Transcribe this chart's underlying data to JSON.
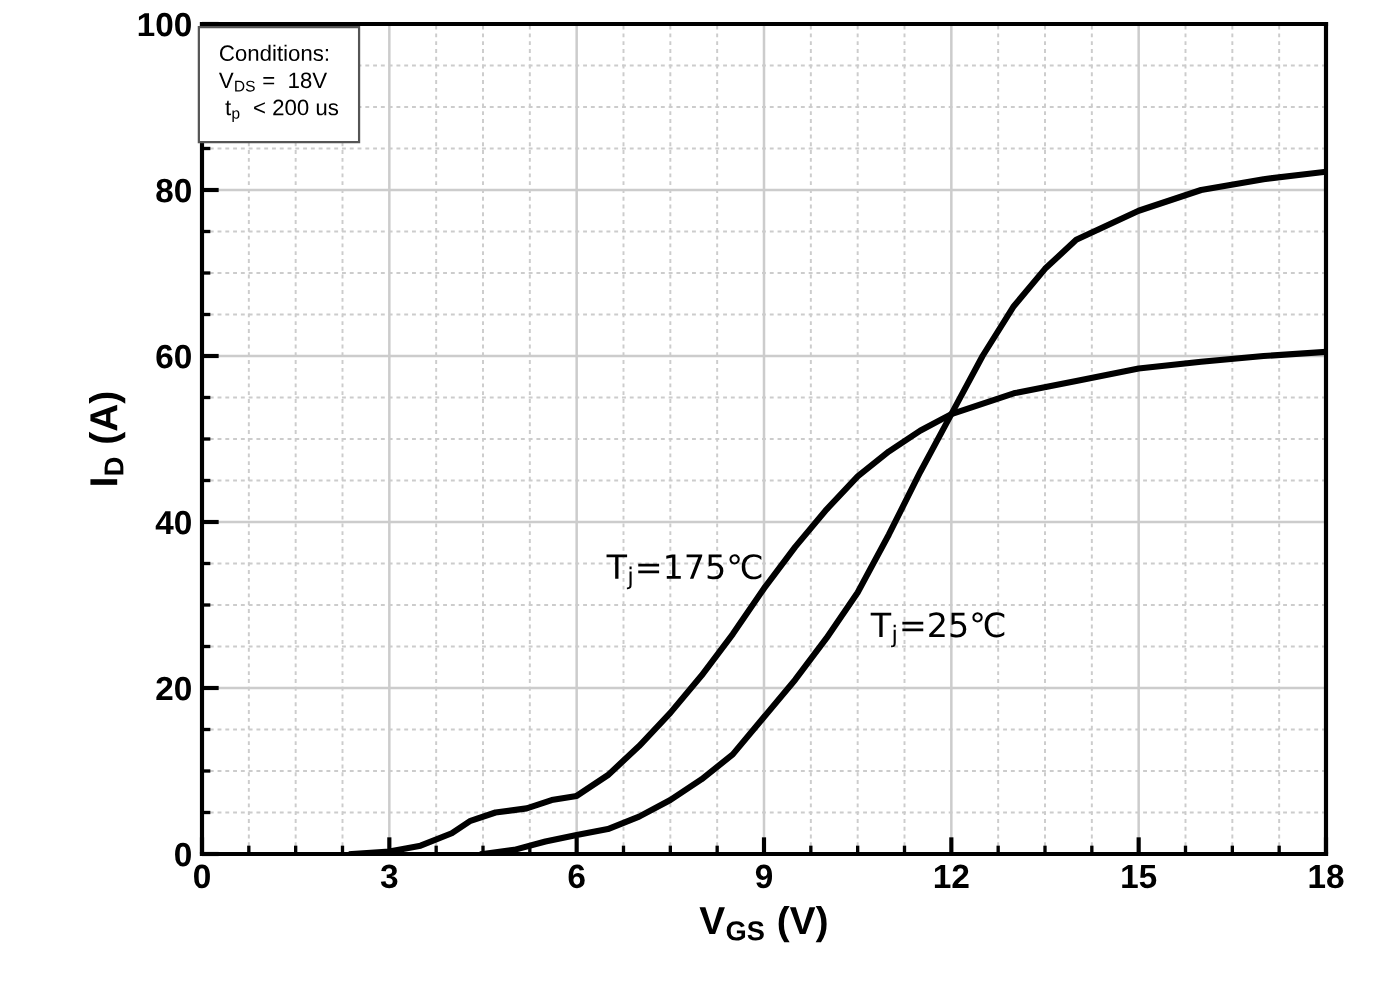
{
  "chart_data": {
    "type": "line",
    "xlabel": "V$_{GS}$ (V)",
    "ylabel": "I$_{D}$ (A)",
    "xlim": [
      0,
      18
    ],
    "ylim": [
      0,
      100
    ],
    "xticks": [
      0,
      3,
      6,
      9,
      12,
      15,
      18
    ],
    "yticks": [
      0,
      20,
      40,
      60,
      80,
      100
    ],
    "grid": true,
    "legend": false,
    "marker": "none",
    "line_style": "solid",
    "series": [
      {
        "x": [
          2.4,
          3,
          3.5,
          4,
          4.3,
          4.7,
          5.2,
          5.6,
          6,
          6.5,
          7,
          7.5,
          8,
          8.5,
          9,
          9.5,
          10,
          10.5,
          11,
          11.5,
          12,
          13,
          14,
          15,
          16,
          17,
          18
        ],
        "values": [
          0,
          0.3,
          1,
          2.5,
          4,
          5,
          5.5,
          6.5,
          7,
          9.5,
          13,
          17,
          21.5,
          26.5,
          32,
          37,
          41.5,
          45.5,
          48.5,
          51,
          53,
          55.5,
          57,
          58.5,
          59.3,
          60,
          60.5
        ],
        "color": "#000000"
      },
      {
        "x": [
          4.5,
          5,
          5.5,
          6,
          6.5,
          7,
          7.5,
          8,
          8.5,
          9,
          9.5,
          10,
          10.5,
          11,
          11.5,
          12,
          12.5,
          13,
          13.5,
          14,
          15,
          16,
          17,
          18
        ],
        "values": [
          0,
          0.5,
          1.5,
          2.3,
          3,
          4.5,
          6.5,
          9,
          12,
          16.5,
          21,
          26,
          31.5,
          38.5,
          46,
          53,
          60,
          66,
          70.5,
          74,
          77.5,
          80,
          81.3,
          82.2
        ],
        "color": "#000000"
      }
    ],
    "annotations": [
      "Conditions:\nV$_{DS}$ =  18V\n t$_{p}$  < 200 us",
      "T$_{j}$=175℃",
      "T$_{j}$=25℃"
    ]
  }
}
